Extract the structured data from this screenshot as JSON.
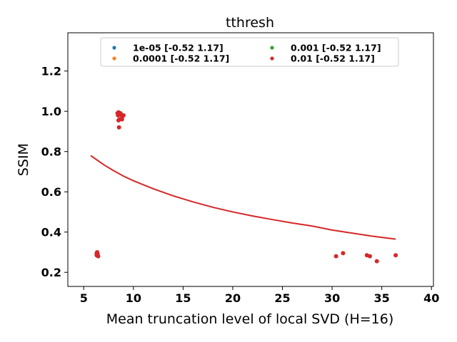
{
  "chart_data": {
    "type": "scatter",
    "title": "tthresh",
    "xlabel": "Mean truncation level of local SVD (H=16)",
    "ylabel": "SSIM",
    "xlim": [
      3.4,
      40.2
    ],
    "ylim": [
      0.13,
      1.39
    ],
    "xticks": [
      5,
      10,
      15,
      20,
      25,
      30,
      35,
      40
    ],
    "yticks": [
      0.2,
      0.4,
      0.6,
      0.8,
      1.0,
      1.2
    ],
    "xtick_labels": [
      "5",
      "10",
      "15",
      "20",
      "25",
      "30",
      "35",
      "40"
    ],
    "ytick_labels": [
      "0.2",
      "0.4",
      "0.6",
      "0.8",
      "1.0",
      "1.2"
    ],
    "grid": false,
    "legend": {
      "placement": "top-center",
      "columns": 2
    },
    "series": [
      {
        "name": "1e-05 [-0.52  1.17]",
        "color": "#1f77b4",
        "points": []
      },
      {
        "name": "0.0001 [-0.52  1.17]",
        "color": "#ff7f0e",
        "points": []
      },
      {
        "name": "0.001 [-0.52  1.17]",
        "color": "#2ca02c",
        "points": []
      },
      {
        "name": "0.01 [-0.52  1.17]",
        "color": "#d62728",
        "points": [
          [
            6.3,
            0.295
          ],
          [
            6.35,
            0.3
          ],
          [
            6.4,
            0.29
          ],
          [
            6.3,
            0.285
          ],
          [
            6.45,
            0.28
          ],
          [
            8.4,
            0.99
          ],
          [
            8.5,
            0.995
          ],
          [
            8.6,
            0.985
          ],
          [
            8.45,
            0.98
          ],
          [
            8.7,
            0.99
          ],
          [
            8.8,
            0.98
          ],
          [
            9.0,
            0.98
          ],
          [
            8.9,
            0.975
          ],
          [
            8.6,
            0.96
          ],
          [
            8.5,
            0.955
          ],
          [
            8.85,
            0.96
          ],
          [
            8.55,
            0.92
          ],
          [
            30.4,
            0.28
          ],
          [
            31.1,
            0.295
          ],
          [
            33.5,
            0.285
          ],
          [
            33.8,
            0.28
          ],
          [
            34.5,
            0.255
          ],
          [
            36.4,
            0.285
          ]
        ]
      }
    ],
    "fit_curve": {
      "color": "#d62728",
      "x": [
        5.7,
        7,
        8,
        9,
        10,
        12,
        14,
        16,
        18,
        20,
        22,
        24,
        26,
        28,
        30,
        32,
        34,
        36.4
      ],
      "y": [
        0.78,
        0.735,
        0.705,
        0.678,
        0.655,
        0.615,
        0.58,
        0.55,
        0.523,
        0.5,
        0.48,
        0.462,
        0.445,
        0.43,
        0.41,
        0.395,
        0.38,
        0.365
      ]
    }
  }
}
